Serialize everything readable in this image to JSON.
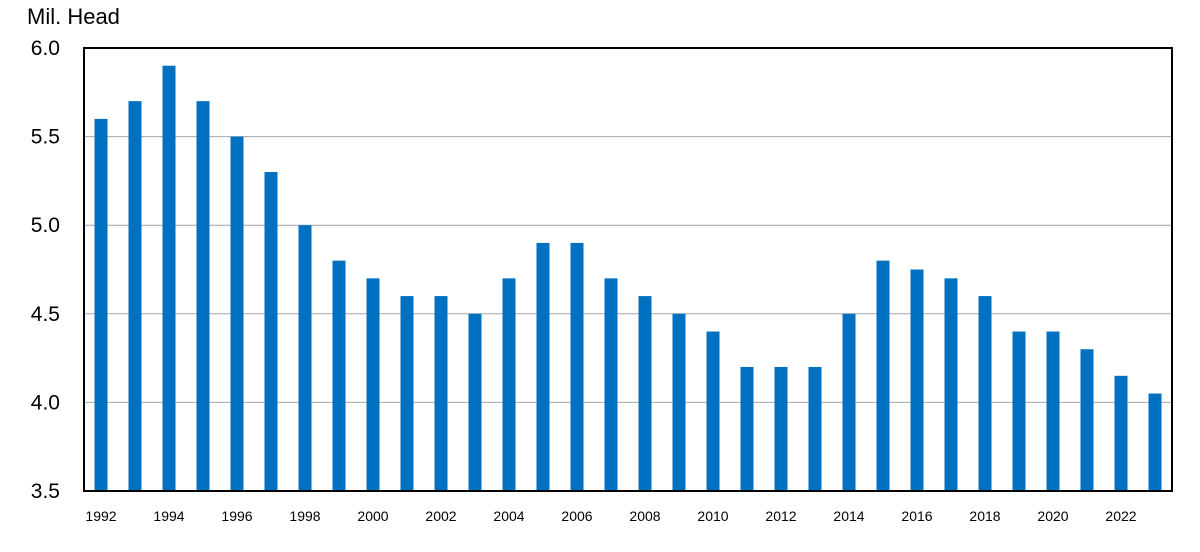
{
  "chart_data": {
    "type": "bar",
    "ylabel": "Mil. Head",
    "xlabel": "",
    "title": "",
    "ylim": [
      3.5,
      6.0
    ],
    "yticks": [
      "3.5",
      "4.0",
      "4.5",
      "5.0",
      "5.5",
      "6.0"
    ],
    "grid": "horizontal",
    "bar_color": "#0070C0",
    "categories": [
      "1992",
      "1993",
      "1994",
      "1995",
      "1996",
      "1997",
      "1998",
      "1999",
      "2000",
      "2001",
      "2002",
      "2003",
      "2004",
      "2005",
      "2006",
      "2007",
      "2008",
      "2009",
      "2010",
      "2011",
      "2012",
      "2013",
      "2014",
      "2015",
      "2016",
      "2017",
      "2018",
      "2019",
      "2020",
      "2021",
      "2022",
      "2023"
    ],
    "x_tick_labels": [
      "1992",
      "1994",
      "1996",
      "1998",
      "2000",
      "2002",
      "2004",
      "2006",
      "2008",
      "2010",
      "2012",
      "2014",
      "2016",
      "2018",
      "2020",
      "2022"
    ],
    "values": [
      5.6,
      5.7,
      5.9,
      5.7,
      5.5,
      5.3,
      5.0,
      4.8,
      4.7,
      4.6,
      4.6,
      4.5,
      4.7,
      4.9,
      4.9,
      4.7,
      4.6,
      4.5,
      4.4,
      4.2,
      4.2,
      4.2,
      4.5,
      4.8,
      4.75,
      4.7,
      4.6,
      4.4,
      4.4,
      4.3,
      4.15,
      4.05
    ]
  }
}
